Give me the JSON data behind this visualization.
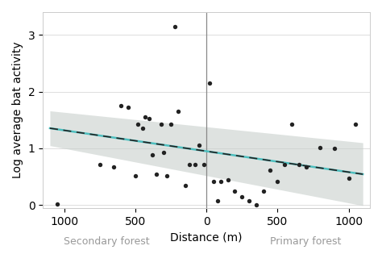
{
  "scatter_x": [
    -1050,
    -750,
    -650,
    -600,
    -550,
    -500,
    -480,
    -450,
    -430,
    -400,
    -380,
    -350,
    -320,
    -300,
    -280,
    -250,
    -220,
    -200,
    -150,
    -120,
    -80,
    -50,
    -20,
    20,
    50,
    80,
    100,
    150,
    200,
    250,
    300,
    350,
    400,
    450,
    500,
    550,
    600,
    650,
    700,
    800,
    900,
    1000,
    1050
  ],
  "scatter_y": [
    0.02,
    0.72,
    0.68,
    1.75,
    1.72,
    0.52,
    1.42,
    1.35,
    1.55,
    1.52,
    0.88,
    0.55,
    1.42,
    0.93,
    0.52,
    1.42,
    3.15,
    1.65,
    0.35,
    0.72,
    0.72,
    1.05,
    0.72,
    2.15,
    0.42,
    0.08,
    0.42,
    0.45,
    0.25,
    0.15,
    0.08,
    0.0,
    0.25,
    0.62,
    0.42,
    0.72,
    1.42,
    0.72,
    0.68,
    1.02,
    1.0,
    0.48,
    1.42
  ],
  "fit_x_min": -1100,
  "fit_x_max": 1100,
  "fit_intercept": 0.95,
  "fit_slope": -0.000368,
  "ci_upper_intercept": 1.38,
  "ci_upper_slope": -0.000255,
  "ci_lower_intercept": 0.52,
  "ci_lower_slope": -0.00048,
  "line_color": "#4dbfbf",
  "dash_color": "#222222",
  "ci_color": "#c8d0cc",
  "ci_alpha": 0.6,
  "vline_x": 0,
  "vline_color": "#888888",
  "xlabel": "Distance (m)",
  "ylabel": "Log average bat activity",
  "xlim": [
    -1150,
    1150
  ],
  "ylim": [
    -0.05,
    3.4
  ],
  "xticks": [
    -1000,
    -500,
    0,
    500,
    1000
  ],
  "xticklabels": [
    "1000",
    "500",
    "0",
    "500",
    "1000"
  ],
  "yticks": [
    0,
    1,
    2,
    3
  ],
  "secondary_forest_label": "Secondary forest",
  "primary_forest_label": "Primary forest",
  "label_color": "#999999",
  "background_color": "#ffffff",
  "grid_color": "#dddddd",
  "scatter_color": "#222222",
  "scatter_size": 15,
  "font_size": 10,
  "label_font_size": 9
}
